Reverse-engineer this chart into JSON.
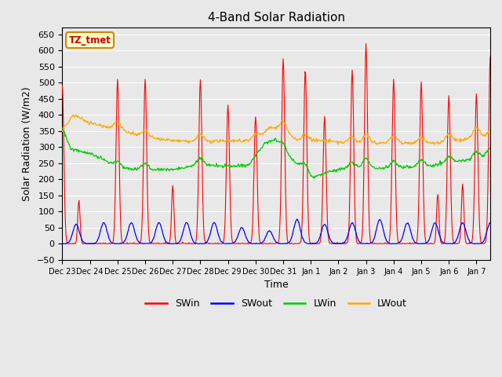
{
  "title": "4-Band Solar Radiation",
  "xlabel": "Time",
  "ylabel": "Solar Radiation (W/m2)",
  "ylim": [
    -50,
    670
  ],
  "yticks": [
    -50,
    0,
    50,
    100,
    150,
    200,
    250,
    300,
    350,
    400,
    450,
    500,
    550,
    600,
    650
  ],
  "xlim_days": 15.5,
  "background_color": "#e8e8e8",
  "grid_color": "#ffffff",
  "legend_labels": [
    "SWin",
    "SWout",
    "LWin",
    "LWout"
  ],
  "legend_colors": [
    "#ff0000",
    "#0000ff",
    "#00cc00",
    "#ffaa00"
  ],
  "annotation_text": "TZ_tmet",
  "annotation_bg": "#ffffcc",
  "annotation_border": "#cc8800",
  "annotation_text_color": "#cc0000",
  "tick_labels": [
    "Dec 23",
    "Dec 24",
    "Dec 25",
    "Dec 26",
    "Dec 27",
    "Dec 28",
    "Dec 29",
    "Dec 30",
    "Dec 31",
    "Jan 1",
    "Jan 2",
    "Jan 3",
    "Jan 4",
    "Jan 5",
    "Jan 6",
    "Jan 7"
  ],
  "swin_peaks": [
    490,
    135,
    510,
    510,
    180,
    510,
    430,
    395,
    575,
    540,
    395,
    540,
    620,
    510,
    500,
    155,
    460,
    185,
    465,
    580,
    0
  ],
  "swin_peak_days": [
    0,
    0.6,
    2,
    3,
    4,
    5,
    6,
    7,
    8,
    8.8,
    9.5,
    10.5,
    11,
    12,
    13,
    13.6,
    14,
    14.5,
    15,
    15.5,
    16
  ],
  "swout_peaks": [
    60,
    65,
    65,
    65,
    65,
    65,
    50,
    40,
    75,
    60,
    65,
    75,
    65,
    65,
    65,
    65
  ],
  "lwout_base_x": [
    0,
    0.4,
    1.0,
    1.5,
    2.0,
    3.0,
    4.0,
    5.0,
    6.0,
    7.0,
    7.5,
    8.0,
    8.5,
    9.0,
    9.5,
    10.0,
    11.0,
    12.0,
    13.0,
    14.0,
    15.0,
    15.5
  ],
  "lwout_base_y": [
    350,
    400,
    375,
    365,
    355,
    330,
    320,
    315,
    320,
    320,
    360,
    355,
    320,
    320,
    320,
    315,
    310,
    315,
    310,
    315,
    330,
    330
  ],
  "lwout_bump_days": [
    2,
    3,
    5,
    7,
    8,
    8.8,
    10.5,
    11,
    12,
    13,
    14,
    15,
    15.5
  ],
  "lwout_bump_heights": [
    25,
    20,
    25,
    20,
    25,
    20,
    20,
    30,
    20,
    20,
    25,
    30,
    20
  ],
  "lwin_base_x": [
    0,
    0.3,
    1.0,
    1.5,
    2.0,
    3.0,
    4.0,
    5.0,
    6.0,
    7.0,
    7.3,
    7.7,
    8.0,
    8.5,
    9.0,
    10.0,
    11.0,
    12.0,
    13.0,
    14.0,
    15.0,
    15.5
  ],
  "lwin_base_y": [
    360,
    295,
    280,
    260,
    235,
    230,
    230,
    245,
    240,
    245,
    310,
    325,
    280,
    250,
    205,
    230,
    235,
    235,
    240,
    250,
    265,
    275
  ],
  "lwin_bump_days": [
    2,
    3,
    5,
    7,
    8,
    8.8,
    10.5,
    11,
    12,
    13,
    14,
    15,
    15.5
  ],
  "lwin_bump_heights": [
    20,
    20,
    20,
    25,
    30,
    25,
    20,
    30,
    20,
    20,
    20,
    20,
    20
  ]
}
